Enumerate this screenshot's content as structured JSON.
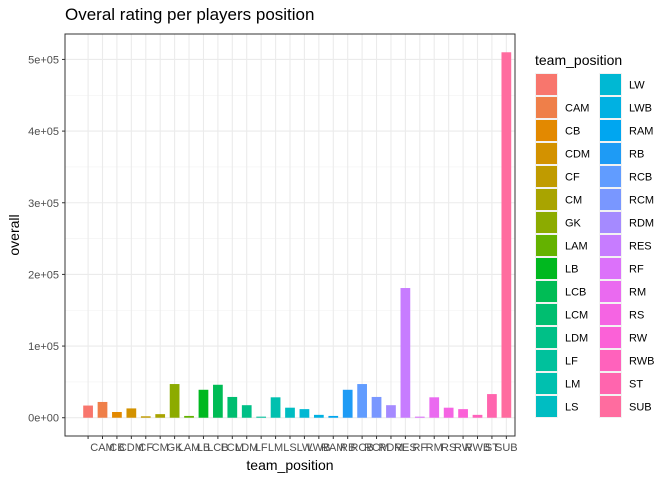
{
  "chart_data": {
    "type": "bar",
    "title": "Overal rating per players position",
    "xlabel": "team_position",
    "ylabel": "overall",
    "ylim": [
      0,
      530000
    ],
    "yticks": [
      0,
      100000,
      200000,
      300000,
      400000,
      500000
    ],
    "ytick_labels": [
      "0e+00",
      "1e+05",
      "2e+05",
      "3e+05",
      "4e+05",
      "5e+05"
    ],
    "grid": true,
    "legend_title": "team_position",
    "legend_position": "right",
    "categories": [
      "",
      "CAM",
      "CB",
      "CDM",
      "CF",
      "CM",
      "GK",
      "LAM",
      "LB",
      "LCB",
      "LCM",
      "LDM",
      "LF",
      "LM",
      "LS",
      "LW",
      "LWB",
      "RAM",
      "RB",
      "RCB",
      "RCM",
      "RDM",
      "RES",
      "RF",
      "RM",
      "RS",
      "RW",
      "RWB",
      "ST",
      "SUB"
    ],
    "values": [
      17000,
      22000,
      8000,
      13000,
      2000,
      5000,
      47000,
      2500,
      39000,
      46000,
      29000,
      17500,
      1500,
      28500,
      14000,
      12000,
      4000,
      2500,
      39000,
      47000,
      29000,
      17500,
      181000,
      1500,
      28500,
      14000,
      12000,
      4000,
      33000,
      510000
    ],
    "colors": [
      "#F8766D",
      "#EF7F49",
      "#E38900",
      "#D39200",
      "#C09B00",
      "#A9A400",
      "#8CAB00",
      "#64B200",
      "#00B81F",
      "#00BC55",
      "#00BE70",
      "#00C087",
      "#00C19C",
      "#00C0AF",
      "#00BDC2",
      "#00B8D3",
      "#00B1E2",
      "#00A6F0",
      "#1E9BF5",
      "#619CFF",
      "#7997FF",
      "#A58AFF",
      "#C77CFF",
      "#DC71FA",
      "#EA6AF0",
      "#F564E3",
      "#FB61D7",
      "#FF62BC",
      "#FF65AE",
      "#FF6C9F"
    ]
  }
}
